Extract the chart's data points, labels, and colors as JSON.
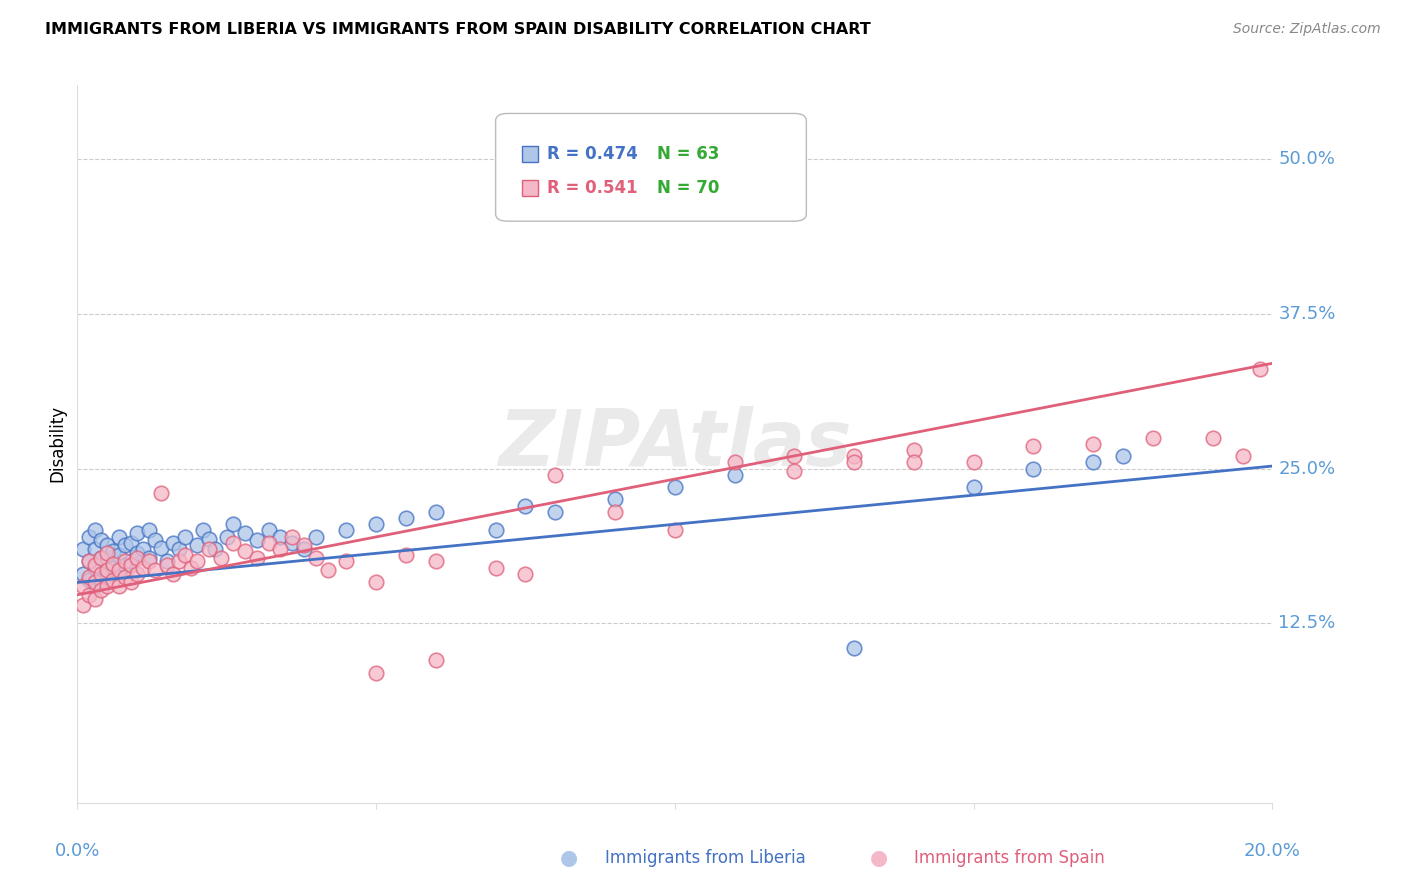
{
  "title": "IMMIGRANTS FROM LIBERIA VS IMMIGRANTS FROM SPAIN DISABILITY CORRELATION CHART",
  "source": "Source: ZipAtlas.com",
  "ylabel": "Disability",
  "ytick_labels": [
    "12.5%",
    "25.0%",
    "37.5%",
    "50.0%"
  ],
  "ytick_values": [
    0.125,
    0.25,
    0.375,
    0.5
  ],
  "xlim": [
    0.0,
    0.2
  ],
  "ylim": [
    -0.02,
    0.56
  ],
  "legend_r1": "R = 0.474",
  "legend_n1": "N = 63",
  "legend_r2": "R = 0.541",
  "legend_n2": "N = 70",
  "color_liberia": "#aec6e8",
  "color_spain": "#f4b8c8",
  "color_liberia_line": "#4472c4",
  "color_spain_line": "#e0607a",
  "color_axis_labels": "#5b9bd5",
  "color_n_labels": "#33aa33",
  "liberia_x": [
    0.001,
    0.001,
    0.002,
    0.002,
    0.002,
    0.003,
    0.003,
    0.003,
    0.003,
    0.004,
    0.004,
    0.004,
    0.005,
    0.005,
    0.005,
    0.006,
    0.006,
    0.007,
    0.007,
    0.007,
    0.008,
    0.008,
    0.009,
    0.009,
    0.01,
    0.01,
    0.011,
    0.012,
    0.012,
    0.013,
    0.014,
    0.015,
    0.016,
    0.017,
    0.018,
    0.02,
    0.021,
    0.022,
    0.023,
    0.025,
    0.026,
    0.028,
    0.03,
    0.032,
    0.034,
    0.036,
    0.038,
    0.04,
    0.045,
    0.05,
    0.055,
    0.06,
    0.07,
    0.075,
    0.08,
    0.09,
    0.1,
    0.11,
    0.13,
    0.15,
    0.16,
    0.17,
    0.175
  ],
  "liberia_y": [
    0.165,
    0.185,
    0.16,
    0.175,
    0.195,
    0.155,
    0.17,
    0.185,
    0.2,
    0.16,
    0.178,
    0.192,
    0.163,
    0.175,
    0.188,
    0.17,
    0.183,
    0.165,
    0.18,
    0.195,
    0.172,
    0.188,
    0.175,
    0.19,
    0.182,
    0.198,
    0.185,
    0.178,
    0.2,
    0.192,
    0.186,
    0.175,
    0.19,
    0.185,
    0.195,
    0.188,
    0.2,
    0.193,
    0.185,
    0.195,
    0.205,
    0.198,
    0.192,
    0.2,
    0.195,
    0.19,
    0.185,
    0.195,
    0.2,
    0.205,
    0.21,
    0.215,
    0.2,
    0.22,
    0.215,
    0.225,
    0.235,
    0.245,
    0.105,
    0.235,
    0.25,
    0.255,
    0.26
  ],
  "spain_x": [
    0.001,
    0.001,
    0.002,
    0.002,
    0.002,
    0.003,
    0.003,
    0.003,
    0.004,
    0.004,
    0.004,
    0.005,
    0.005,
    0.005,
    0.006,
    0.006,
    0.007,
    0.007,
    0.008,
    0.008,
    0.009,
    0.009,
    0.01,
    0.01,
    0.011,
    0.012,
    0.013,
    0.014,
    0.015,
    0.016,
    0.017,
    0.018,
    0.019,
    0.02,
    0.022,
    0.024,
    0.026,
    0.028,
    0.03,
    0.032,
    0.034,
    0.036,
    0.038,
    0.04,
    0.042,
    0.045,
    0.05,
    0.055,
    0.06,
    0.07,
    0.08,
    0.09,
    0.1,
    0.11,
    0.12,
    0.13,
    0.14,
    0.15,
    0.16,
    0.17,
    0.18,
    0.19,
    0.195,
    0.198,
    0.14,
    0.06,
    0.075,
    0.05,
    0.13,
    0.12
  ],
  "spain_y": [
    0.14,
    0.155,
    0.148,
    0.162,
    0.175,
    0.145,
    0.158,
    0.172,
    0.152,
    0.165,
    0.178,
    0.155,
    0.168,
    0.182,
    0.16,
    0.173,
    0.155,
    0.168,
    0.162,
    0.175,
    0.158,
    0.172,
    0.165,
    0.178,
    0.17,
    0.175,
    0.168,
    0.23,
    0.172,
    0.165,
    0.175,
    0.18,
    0.17,
    0.175,
    0.185,
    0.178,
    0.19,
    0.183,
    0.178,
    0.19,
    0.185,
    0.195,
    0.188,
    0.178,
    0.168,
    0.175,
    0.085,
    0.18,
    0.175,
    0.17,
    0.245,
    0.215,
    0.2,
    0.255,
    0.26,
    0.26,
    0.265,
    0.255,
    0.268,
    0.27,
    0.275,
    0.275,
    0.26,
    0.33,
    0.255,
    0.095,
    0.165,
    0.158,
    0.255,
    0.248
  ],
  "trendline_liberia": [
    0.158,
    0.252
  ],
  "trendline_spain": [
    0.148,
    0.335
  ]
}
